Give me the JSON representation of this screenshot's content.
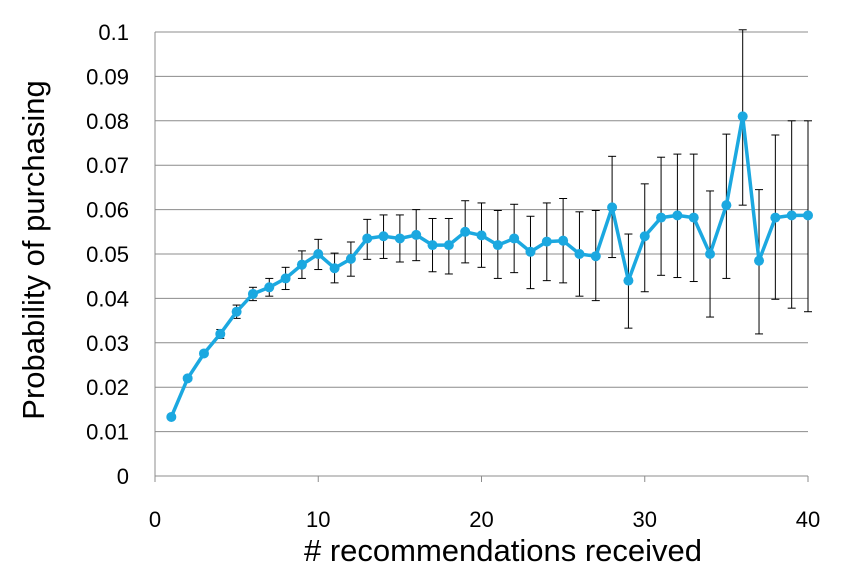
{
  "chart_data": {
    "type": "line",
    "title": "",
    "xlabel": "# recommendations received",
    "ylabel": "Probability of purchasing",
    "xlim": [
      0,
      40
    ],
    "ylim": [
      0,
      0.1
    ],
    "xticks": [
      0,
      10,
      20,
      30,
      40
    ],
    "yticks": [
      0,
      0.01,
      0.02,
      0.03,
      0.04,
      0.05,
      0.06,
      0.07,
      0.08,
      0.09,
      0.1
    ],
    "xtick_labels": [
      "0",
      "10",
      "20",
      "30",
      "40"
    ],
    "ytick_labels": [
      "0",
      "0.01",
      "0.02",
      "0.03",
      "0.04",
      "0.05",
      "0.06",
      "0.07",
      "0.08",
      "0.09",
      "0.1"
    ],
    "grid": "horizontal",
    "legend": "none",
    "series_color": "#1ba8e0",
    "series": [
      {
        "x": [
          1,
          2,
          3,
          4,
          5,
          6,
          7,
          8,
          9,
          10,
          11,
          12,
          13,
          14,
          15,
          16,
          17,
          18,
          19,
          20,
          21,
          22,
          23,
          24,
          25,
          26,
          27,
          28,
          29,
          30,
          31,
          32,
          33,
          34,
          35,
          36,
          37,
          38,
          39,
          40
        ],
        "values": [
          0.0133,
          0.022,
          0.0276,
          0.032,
          0.037,
          0.041,
          0.0425,
          0.0445,
          0.0476,
          0.05,
          0.0468,
          0.0489,
          0.0535,
          0.054,
          0.0535,
          0.0543,
          0.052,
          0.052,
          0.055,
          0.0542,
          0.052,
          0.0535,
          0.0505,
          0.0528,
          0.053,
          0.05,
          0.0495,
          0.0605,
          0.044,
          0.054,
          0.0582,
          0.0587,
          0.0582,
          0.05,
          0.061,
          0.081,
          0.0485,
          0.0582,
          0.0587,
          0.0587
        ],
        "error_low": [
          0.0133,
          0.022,
          0.0276,
          0.031,
          0.0355,
          0.0395,
          0.0405,
          0.042,
          0.0445,
          0.0465,
          0.0435,
          0.045,
          0.0488,
          0.049,
          0.0482,
          0.0485,
          0.046,
          0.0455,
          0.048,
          0.047,
          0.0445,
          0.0458,
          0.0422,
          0.044,
          0.0435,
          0.0405,
          0.0395,
          0.0492,
          0.0333,
          0.0415,
          0.0452,
          0.0447,
          0.0438,
          0.0358,
          0.0445,
          0.061,
          0.032,
          0.0398,
          0.0378,
          0.037
        ],
        "error_high": [
          0.0133,
          0.022,
          0.0276,
          0.033,
          0.0385,
          0.0425,
          0.0445,
          0.047,
          0.0507,
          0.0533,
          0.0502,
          0.0527,
          0.0578,
          0.0588,
          0.0588,
          0.06,
          0.058,
          0.058,
          0.062,
          0.0615,
          0.0598,
          0.0612,
          0.0585,
          0.0615,
          0.0625,
          0.0595,
          0.0598,
          0.072,
          0.0545,
          0.0658,
          0.0718,
          0.0725,
          0.0725,
          0.0642,
          0.077,
          0.1005,
          0.0645,
          0.0768,
          0.08,
          0.08
        ]
      }
    ]
  }
}
